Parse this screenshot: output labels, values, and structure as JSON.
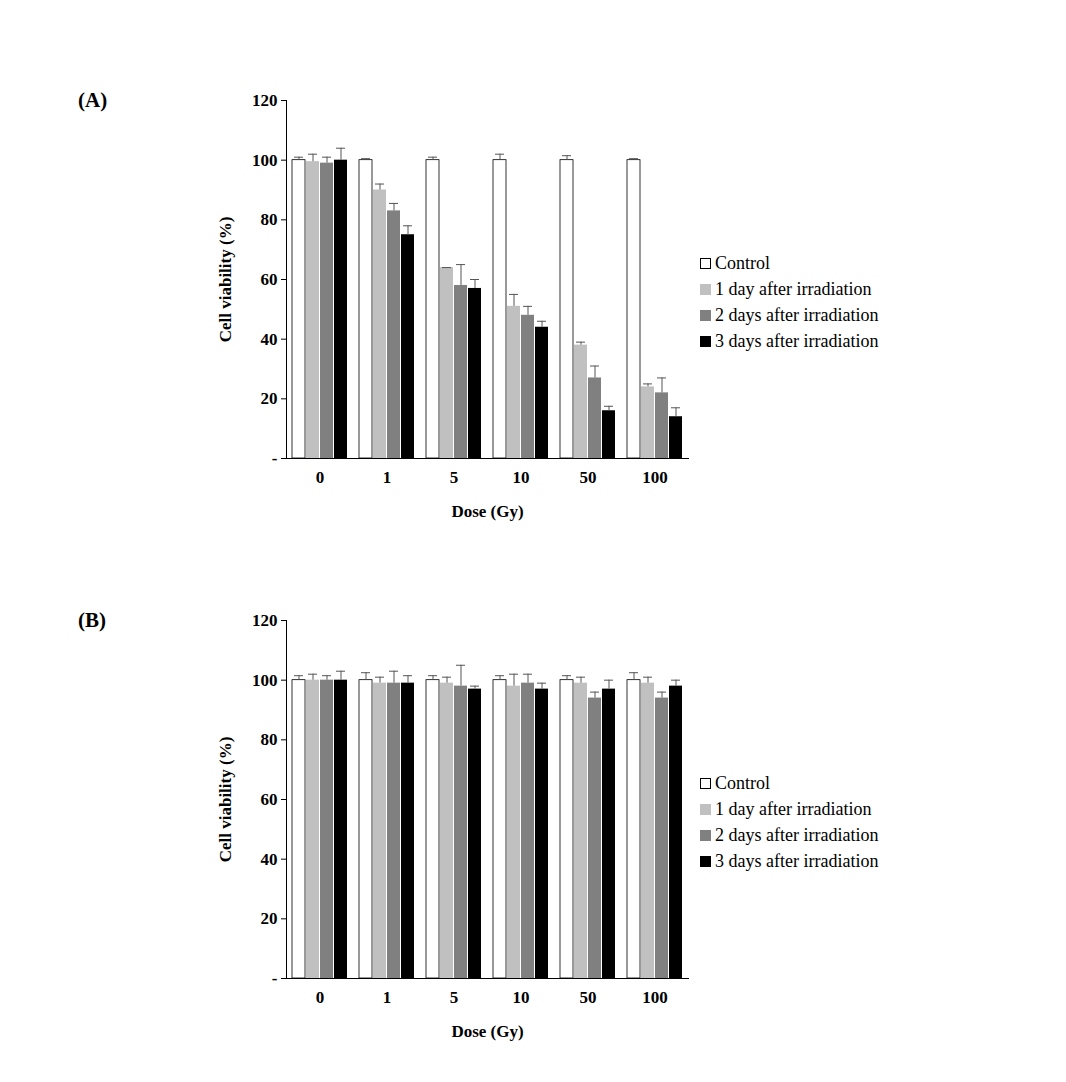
{
  "chart_data": [
    {
      "type": "bar",
      "title": "(A)",
      "x_label": "Dose (Gy)",
      "y_label": "Cell viability (%)",
      "categories": [
        "0",
        "1",
        "5",
        "10",
        "50",
        "100"
      ],
      "series": [
        {
          "name": "Control",
          "color": "#ffffff",
          "values": [
            100,
            100,
            100,
            100,
            100,
            100
          ],
          "errors": [
            1,
            0.5,
            1,
            2,
            1.5,
            0.5
          ]
        },
        {
          "name": "1 day after irradiation",
          "color": "#c0c0c0",
          "values": [
            99.5,
            90,
            64,
            51,
            38,
            24
          ],
          "errors": [
            2.5,
            2,
            0,
            4,
            1,
            1
          ]
        },
        {
          "name": "2 days after irradiation",
          "color": "#808080",
          "values": [
            99,
            83,
            58,
            48,
            27,
            22
          ],
          "errors": [
            2,
            2.5,
            7,
            3,
            4,
            5
          ]
        },
        {
          "name": "3 days after irradiation",
          "color": "#000000",
          "values": [
            100,
            75,
            57,
            44,
            16,
            14
          ],
          "errors": [
            4,
            3,
            3,
            2,
            1.5,
            3
          ]
        }
      ],
      "ylim": [
        0,
        120
      ],
      "yticks": [
        {
          "value": 0,
          "label": "-"
        },
        20,
        40,
        60,
        80,
        100,
        120
      ],
      "grid": false,
      "legend": "right"
    },
    {
      "type": "bar",
      "title": "(B)",
      "x_label": "Dose (Gy)",
      "y_label": "Cell viability (%)",
      "categories": [
        "0",
        "1",
        "5",
        "10",
        "50",
        "100"
      ],
      "series": [
        {
          "name": "Control",
          "color": "#ffffff",
          "values": [
            100,
            100,
            100,
            100,
            100,
            100
          ],
          "errors": [
            1.5,
            2.5,
            1.5,
            1.5,
            1.5,
            2.5
          ]
        },
        {
          "name": "1 day after irradiation",
          "color": "#c0c0c0",
          "values": [
            100,
            99,
            99,
            98,
            99,
            99
          ],
          "errors": [
            2,
            2,
            2,
            4,
            2,
            2
          ]
        },
        {
          "name": "2 days after irradiation",
          "color": "#808080",
          "values": [
            100,
            99,
            98,
            99,
            94,
            94
          ],
          "errors": [
            1.5,
            4,
            7,
            3,
            2,
            2
          ]
        },
        {
          "name": "3 days after irradiation",
          "color": "#000000",
          "values": [
            100,
            99,
            97,
            97,
            97,
            98
          ],
          "errors": [
            3,
            2.5,
            1,
            2,
            3,
            2
          ]
        }
      ],
      "ylim": [
        0,
        120
      ],
      "yticks": [
        {
          "value": 0,
          "label": "-"
        },
        20,
        40,
        60,
        80,
        100,
        120
      ],
      "grid": false,
      "legend": "right"
    }
  ]
}
